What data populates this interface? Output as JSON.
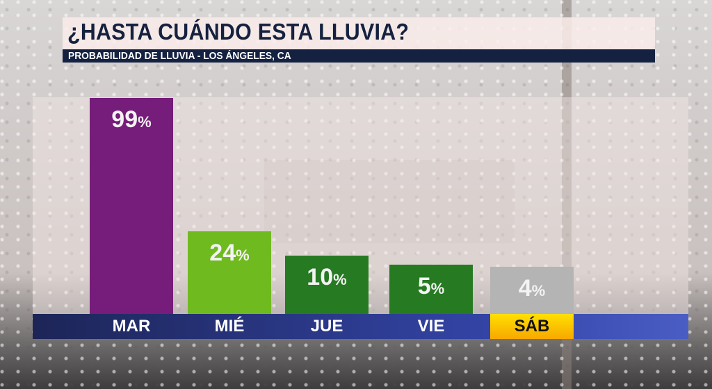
{
  "chart_data": {
    "type": "bar",
    "title": "¿HASTA CUÁNDO ESTA LLUVIA?",
    "subtitle": "PROBABILIDAD DE LLUVIA - LOS ÁNGELES, CA",
    "categories": [
      "MAR",
      "MIÉ",
      "JUE",
      "VIE",
      "SÁB"
    ],
    "values": [
      99,
      24,
      10,
      5,
      4
    ],
    "unit": "%",
    "colors": [
      "#761c7a",
      "#6fba1f",
      "#267a22",
      "#267a22",
      "#b4b4b4"
    ],
    "highlighted_category": "SÁB",
    "ylim": [
      0,
      100
    ],
    "xlabel": "",
    "ylabel": ""
  }
}
